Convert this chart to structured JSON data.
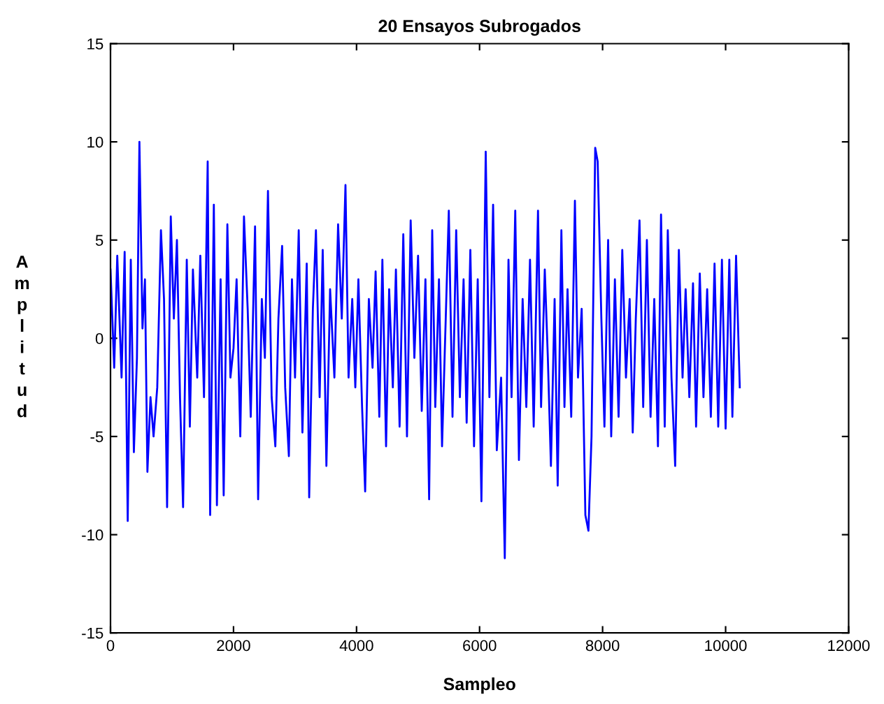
{
  "chart_data": {
    "type": "line",
    "title": "20 Ensayos Subrogados",
    "xlabel": "Sampleo",
    "ylabel": "Amplitud",
    "xlim": [
      0,
      12000
    ],
    "xticks": [
      0,
      2000,
      4000,
      6000,
      8000,
      10000,
      12000
    ],
    "ylim": [
      -15,
      15
    ],
    "yticks": [
      -15,
      -10,
      -5,
      0,
      5,
      10,
      15
    ],
    "grid": false,
    "marker": "none",
    "line_style": "solid",
    "series": [
      {
        "color": "#0000ff",
        "x": [
          0,
          60,
          110,
          180,
          230,
          280,
          330,
          380,
          430,
          470,
          520,
          560,
          600,
          650,
          700,
          760,
          820,
          870,
          920,
          980,
          1030,
          1080,
          1130,
          1180,
          1240,
          1290,
          1340,
          1410,
          1460,
          1520,
          1580,
          1620,
          1680,
          1730,
          1790,
          1840,
          1900,
          1950,
          2000,
          2050,
          2110,
          2170,
          2230,
          2280,
          2350,
          2400,
          2460,
          2510,
          2560,
          2620,
          2680,
          2730,
          2790,
          2840,
          2900,
          2950,
          3000,
          3060,
          3120,
          3190,
          3230,
          3290,
          3340,
          3400,
          3450,
          3510,
          3570,
          3640,
          3700,
          3760,
          3820,
          3870,
          3930,
          3980,
          4030,
          4090,
          4140,
          4200,
          4260,
          4310,
          4370,
          4420,
          4480,
          4530,
          4590,
          4640,
          4700,
          4760,
          4820,
          4880,
          4940,
          5000,
          5060,
          5120,
          5180,
          5230,
          5280,
          5340,
          5390,
          5450,
          5500,
          5560,
          5620,
          5680,
          5740,
          5790,
          5850,
          5910,
          5970,
          6030,
          6100,
          6160,
          6220,
          6280,
          6350,
          6410,
          6470,
          6520,
          6580,
          6640,
          6700,
          6760,
          6820,
          6880,
          6950,
          7000,
          7060,
          7110,
          7160,
          7220,
          7270,
          7330,
          7380,
          7430,
          7490,
          7550,
          7600,
          7660,
          7720,
          7770,
          7820,
          7880,
          7920,
          7980,
          8030,
          8090,
          8140,
          8200,
          8260,
          8320,
          8380,
          8440,
          8490,
          8540,
          8600,
          8660,
          8720,
          8780,
          8840,
          8900,
          8950,
          9010,
          9060,
          9120,
          9180,
          9240,
          9300,
          9350,
          9410,
          9470,
          9520,
          9580,
          9640,
          9700,
          9760,
          9820,
          9880,
          9940,
          10000,
          10060,
          10110,
          10170,
          10230
        ],
        "values": [
          3.5,
          -1.5,
          4.2,
          -2,
          4.4,
          -9.3,
          4,
          -5.8,
          -1,
          10,
          0.5,
          3,
          -6.8,
          -3,
          -5,
          -2.5,
          5.5,
          2,
          -8.6,
          6.2,
          1,
          5,
          -3,
          -8.6,
          4,
          -4.5,
          3.5,
          -2,
          4.2,
          -3,
          9,
          -9,
          6.8,
          -8.5,
          3,
          -8,
          5.8,
          -2,
          -0.5,
          3,
          -5,
          6.2,
          1.5,
          -4,
          5.7,
          -8.2,
          2,
          -1,
          7.5,
          -3,
          -5.5,
          1,
          4.7,
          -2.5,
          -6,
          3,
          -2,
          5.5,
          -4.8,
          3.8,
          -8.1,
          1.5,
          5.5,
          -3,
          4.5,
          -6.5,
          2.5,
          -2,
          5.8,
          1,
          7.8,
          -2,
          2,
          -2.5,
          3,
          -3.5,
          -7.8,
          2,
          -1.5,
          3.4,
          -4,
          4,
          -5.5,
          2.5,
          -2.5,
          3.5,
          -4.5,
          5.3,
          -5,
          6,
          -1,
          4.2,
          -3.7,
          3,
          -8.2,
          5.5,
          -3.5,
          3,
          -5.5,
          1,
          6.5,
          -4,
          5.5,
          -3,
          3,
          -4.3,
          4.5,
          -5.5,
          3,
          -8.3,
          9.5,
          -3,
          6.8,
          -5.7,
          -2,
          -11.2,
          4,
          -3,
          6.5,
          -6.2,
          2,
          -3.5,
          4,
          -4.5,
          6.5,
          -3.5,
          3.5,
          -1,
          -6.5,
          2,
          -7.5,
          5.5,
          -3.5,
          2.5,
          -4,
          7,
          -2,
          1.5,
          -9,
          -9.8,
          -5,
          9.7,
          9,
          1,
          -4.5,
          5,
          -5,
          3,
          -4,
          4.5,
          -2,
          2,
          -4.8,
          1,
          6,
          -3.5,
          5,
          -4,
          2,
          -5.5,
          6.3,
          -4.5,
          5.5,
          -2,
          -6.5,
          4.5,
          -2,
          2.5,
          -3,
          2.8,
          -4.5,
          3.3,
          -3,
          2.5,
          -4,
          3.8,
          -4.5,
          4,
          -4.6,
          4,
          -4,
          4.2,
          -2.5
        ]
      }
    ]
  }
}
